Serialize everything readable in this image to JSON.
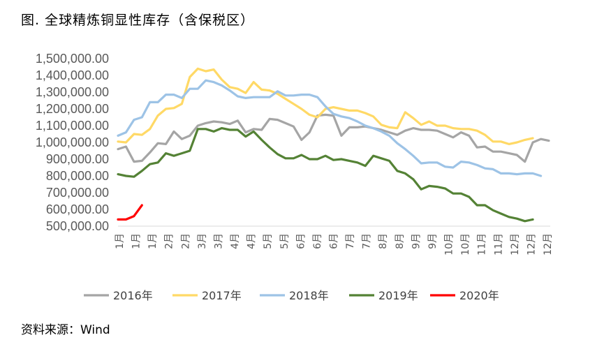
{
  "header": {
    "title": "图. 全球精炼铜显性库存（含保税区）"
  },
  "footer": {
    "source": "资料来源：Wind"
  },
  "chart_data": {
    "type": "line",
    "title": "图. 全球精炼铜显性库存（含保税区）",
    "ylim": [
      500000,
      1500000
    ],
    "y_ticks": [
      "500,000.00",
      "600,000.00",
      "700,000.00",
      "800,000.00",
      "900,000.00",
      "1,000,000.00",
      "1,100,000.00",
      "1,200,000.00",
      "1,300,000.00",
      "1,400,000.00",
      "1,500,000.00"
    ],
    "x_ticks": [
      "1月",
      "1月",
      "1月",
      "2月",
      "2月",
      "3月",
      "3月",
      "4月",
      "4月",
      "5月",
      "5月",
      "6月",
      "6月",
      "6月",
      "7月",
      "7月",
      "8月",
      "8月",
      "9月",
      "9月",
      "10月",
      "10月",
      "11月",
      "11月",
      "12月",
      "12月",
      "12月"
    ],
    "legend_position": "bottom",
    "series": [
      {
        "name": "2016年",
        "color": "#a5a5a5",
        "values": [
          960000,
          975000,
          885000,
          890000,
          940000,
          995000,
          990000,
          1065000,
          1020000,
          1040000,
          1100000,
          1115000,
          1125000,
          1120000,
          1110000,
          1130000,
          1060000,
          1080000,
          1075000,
          1140000,
          1135000,
          1115000,
          1095000,
          1015000,
          1060000,
          1160000,
          1165000,
          1160000,
          1040000,
          1090000,
          1090000,
          1095000,
          1085000,
          1075000,
          1060000,
          1045000,
          1070000,
          1085000,
          1075000,
          1075000,
          1070000,
          1050000,
          1030000,
          1060000,
          1040000,
          970000,
          975000,
          945000,
          945000,
          935000,
          925000,
          885000,
          1000000,
          1020000,
          1010000
        ]
      },
      {
        "name": "2017年",
        "color": "#ffd966",
        "values": [
          1005000,
          1000000,
          1050000,
          1045000,
          1080000,
          1160000,
          1200000,
          1205000,
          1230000,
          1390000,
          1440000,
          1425000,
          1435000,
          1375000,
          1330000,
          1320000,
          1295000,
          1360000,
          1315000,
          1310000,
          1290000,
          1260000,
          1230000,
          1200000,
          1165000,
          1150000,
          1200000,
          1210000,
          1200000,
          1190000,
          1190000,
          1175000,
          1155000,
          1105000,
          1090000,
          1085000,
          1180000,
          1145000,
          1105000,
          1125000,
          1100000,
          1100000,
          1085000,
          1080000,
          1080000,
          1070000,
          1045000,
          1005000,
          1005000,
          990000,
          1000000,
          1015000,
          1025000
        ]
      },
      {
        "name": "2018年",
        "color": "#9dc3e6",
        "values": [
          1040000,
          1060000,
          1135000,
          1150000,
          1240000,
          1240000,
          1285000,
          1285000,
          1265000,
          1320000,
          1320000,
          1370000,
          1360000,
          1340000,
          1310000,
          1275000,
          1265000,
          1270000,
          1270000,
          1270000,
          1305000,
          1280000,
          1280000,
          1285000,
          1285000,
          1270000,
          1215000,
          1170000,
          1155000,
          1145000,
          1125000,
          1100000,
          1085000,
          1065000,
          1040000,
          995000,
          960000,
          920000,
          875000,
          880000,
          880000,
          855000,
          850000,
          885000,
          880000,
          865000,
          845000,
          840000,
          815000,
          815000,
          810000,
          815000,
          815000,
          800000
        ]
      },
      {
        "name": "2019年",
        "color": "#548235",
        "values": [
          810000,
          800000,
          795000,
          830000,
          870000,
          880000,
          935000,
          920000,
          935000,
          950000,
          1080000,
          1080000,
          1065000,
          1085000,
          1075000,
          1075000,
          1035000,
          1065000,
          1015000,
          970000,
          930000,
          905000,
          905000,
          925000,
          900000,
          900000,
          920000,
          895000,
          900000,
          890000,
          880000,
          860000,
          920000,
          905000,
          890000,
          830000,
          815000,
          780000,
          720000,
          740000,
          735000,
          725000,
          695000,
          695000,
          675000,
          625000,
          625000,
          595000,
          575000,
          555000,
          545000,
          530000,
          540000
        ]
      },
      {
        "name": "2020年",
        "color": "#ff0000",
        "values": [
          540000,
          540000,
          560000,
          625000
        ]
      }
    ]
  }
}
